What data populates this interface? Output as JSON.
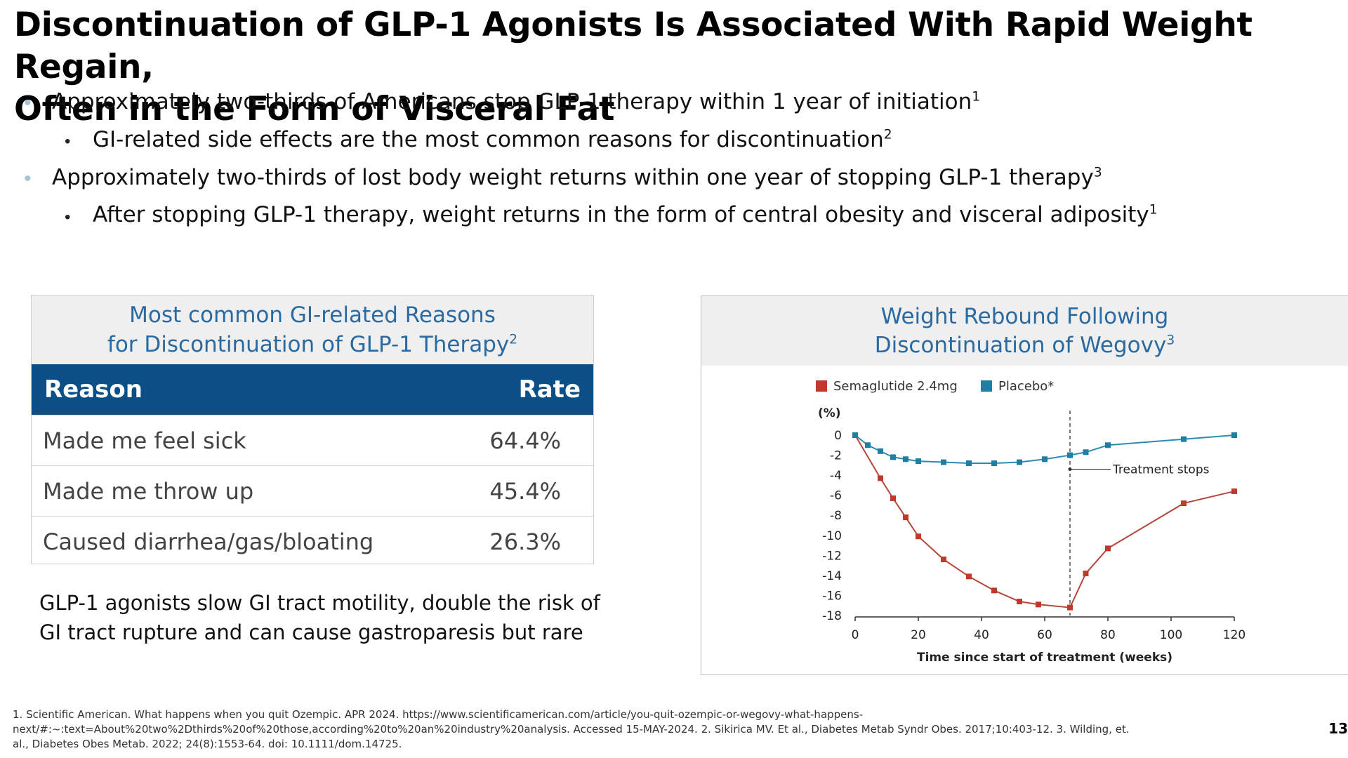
{
  "slide": {
    "title_line1": "Discontinuation of GLP-1 Agonists Is Associated With Rapid Weight Regain,",
    "title_line2": "Often in the Form of Visceral Fat",
    "page_number": "13"
  },
  "bullets": [
    {
      "text": "Approximately two-thirds of Americans stop GLP-1 therapy within 1 year of initiation",
      "sup": "1"
    },
    {
      "text": "GI-related side effects are the most common reasons for discontinuation",
      "sup": "2"
    },
    {
      "text": "Approximately two-thirds of lost body weight returns within one year of stopping GLP-1 therapy",
      "sup": "3"
    },
    {
      "text": "After stopping GLP-1 therapy, weight returns in the form of central obesity and visceral adiposity",
      "sup": "1"
    }
  ],
  "table": {
    "title_line1": "Most common GI-related Reasons",
    "title_line2": "for Discontinuation of GLP-1 Therapy",
    "title_sup": "2",
    "header_reason": "Reason",
    "header_rate": "Rate",
    "rows": [
      {
        "reason": "Made me feel sick",
        "rate": "64.4%"
      },
      {
        "reason": "Made me throw up",
        "rate": "45.4%"
      },
      {
        "reason": "Caused diarrhea/gas/bloating",
        "rate": "26.3%"
      }
    ]
  },
  "note": {
    "line1": "GLP-1 agonists slow GI tract motility, double the risk of",
    "line2": "GI tract rupture and can cause gastroparesis but rare"
  },
  "chart_data": {
    "type": "line",
    "title_line1": "Weight Rebound Following",
    "title_line2": "Discontinuation of Wegovy",
    "title_sup": "3",
    "xlabel": "Time since start of treatment (weeks)",
    "ylabel": "(%)",
    "xlim": [
      0,
      120
    ],
    "ylim": [
      -18,
      0
    ],
    "x_ticks": [
      0,
      20,
      40,
      60,
      80,
      100,
      120
    ],
    "y_ticks": [
      0,
      -2,
      -4,
      -6,
      -8,
      -10,
      -12,
      -14,
      -16,
      -18
    ],
    "legend_position": "top-left",
    "annotation": {
      "text": "Treatment stops",
      "x": 68,
      "y": -3.4
    },
    "colors": {
      "semaglutide": "#c0392b",
      "placebo": "#1f7fa3",
      "line_semaglutide": "#b5473a",
      "line_placebo": "#2c8bb0"
    },
    "series": [
      {
        "name": "Semaglutide 2.4mg",
        "x": [
          0,
          8,
          12,
          16,
          20,
          28,
          36,
          44,
          52,
          58,
          68,
          73,
          80,
          104,
          120
        ],
        "y": [
          0,
          -4.3,
          -6.3,
          -8.2,
          -10.1,
          -12.4,
          -14.1,
          -15.5,
          -16.6,
          -16.9,
          -17.2,
          -13.8,
          -11.3,
          -6.8,
          -5.6
        ]
      },
      {
        "name": "Placebo*",
        "x": [
          0,
          4,
          8,
          12,
          16,
          20,
          28,
          36,
          44,
          52,
          60,
          68,
          73,
          80,
          104,
          120
        ],
        "y": [
          0,
          -1.0,
          -1.6,
          -2.2,
          -2.4,
          -2.6,
          -2.7,
          -2.8,
          -2.8,
          -2.7,
          -2.4,
          -2.0,
          -1.7,
          -1.0,
          -0.4,
          0
        ]
      }
    ]
  },
  "references": {
    "line1": "1. Scientific American. What happens when you quit Ozempic. APR 2024. https://www.scientificamerican.com/article/you-quit-ozempic-or-wegovy-what-happens-",
    "line2": "next/#:~:text=About%20two%2Dthirds%20of%20those,according%20to%20an%20industry%20analysis. Accessed 15-MAY-2024. 2. Sikirica MV. Et al., Diabetes Metab Syndr Obes. 2017;10:403-12. 3. Wilding, et.",
    "line3": "al., Diabetes Obes Metab. 2022; 24(8):1553-64. doi: 10.1111/dom.14725."
  }
}
